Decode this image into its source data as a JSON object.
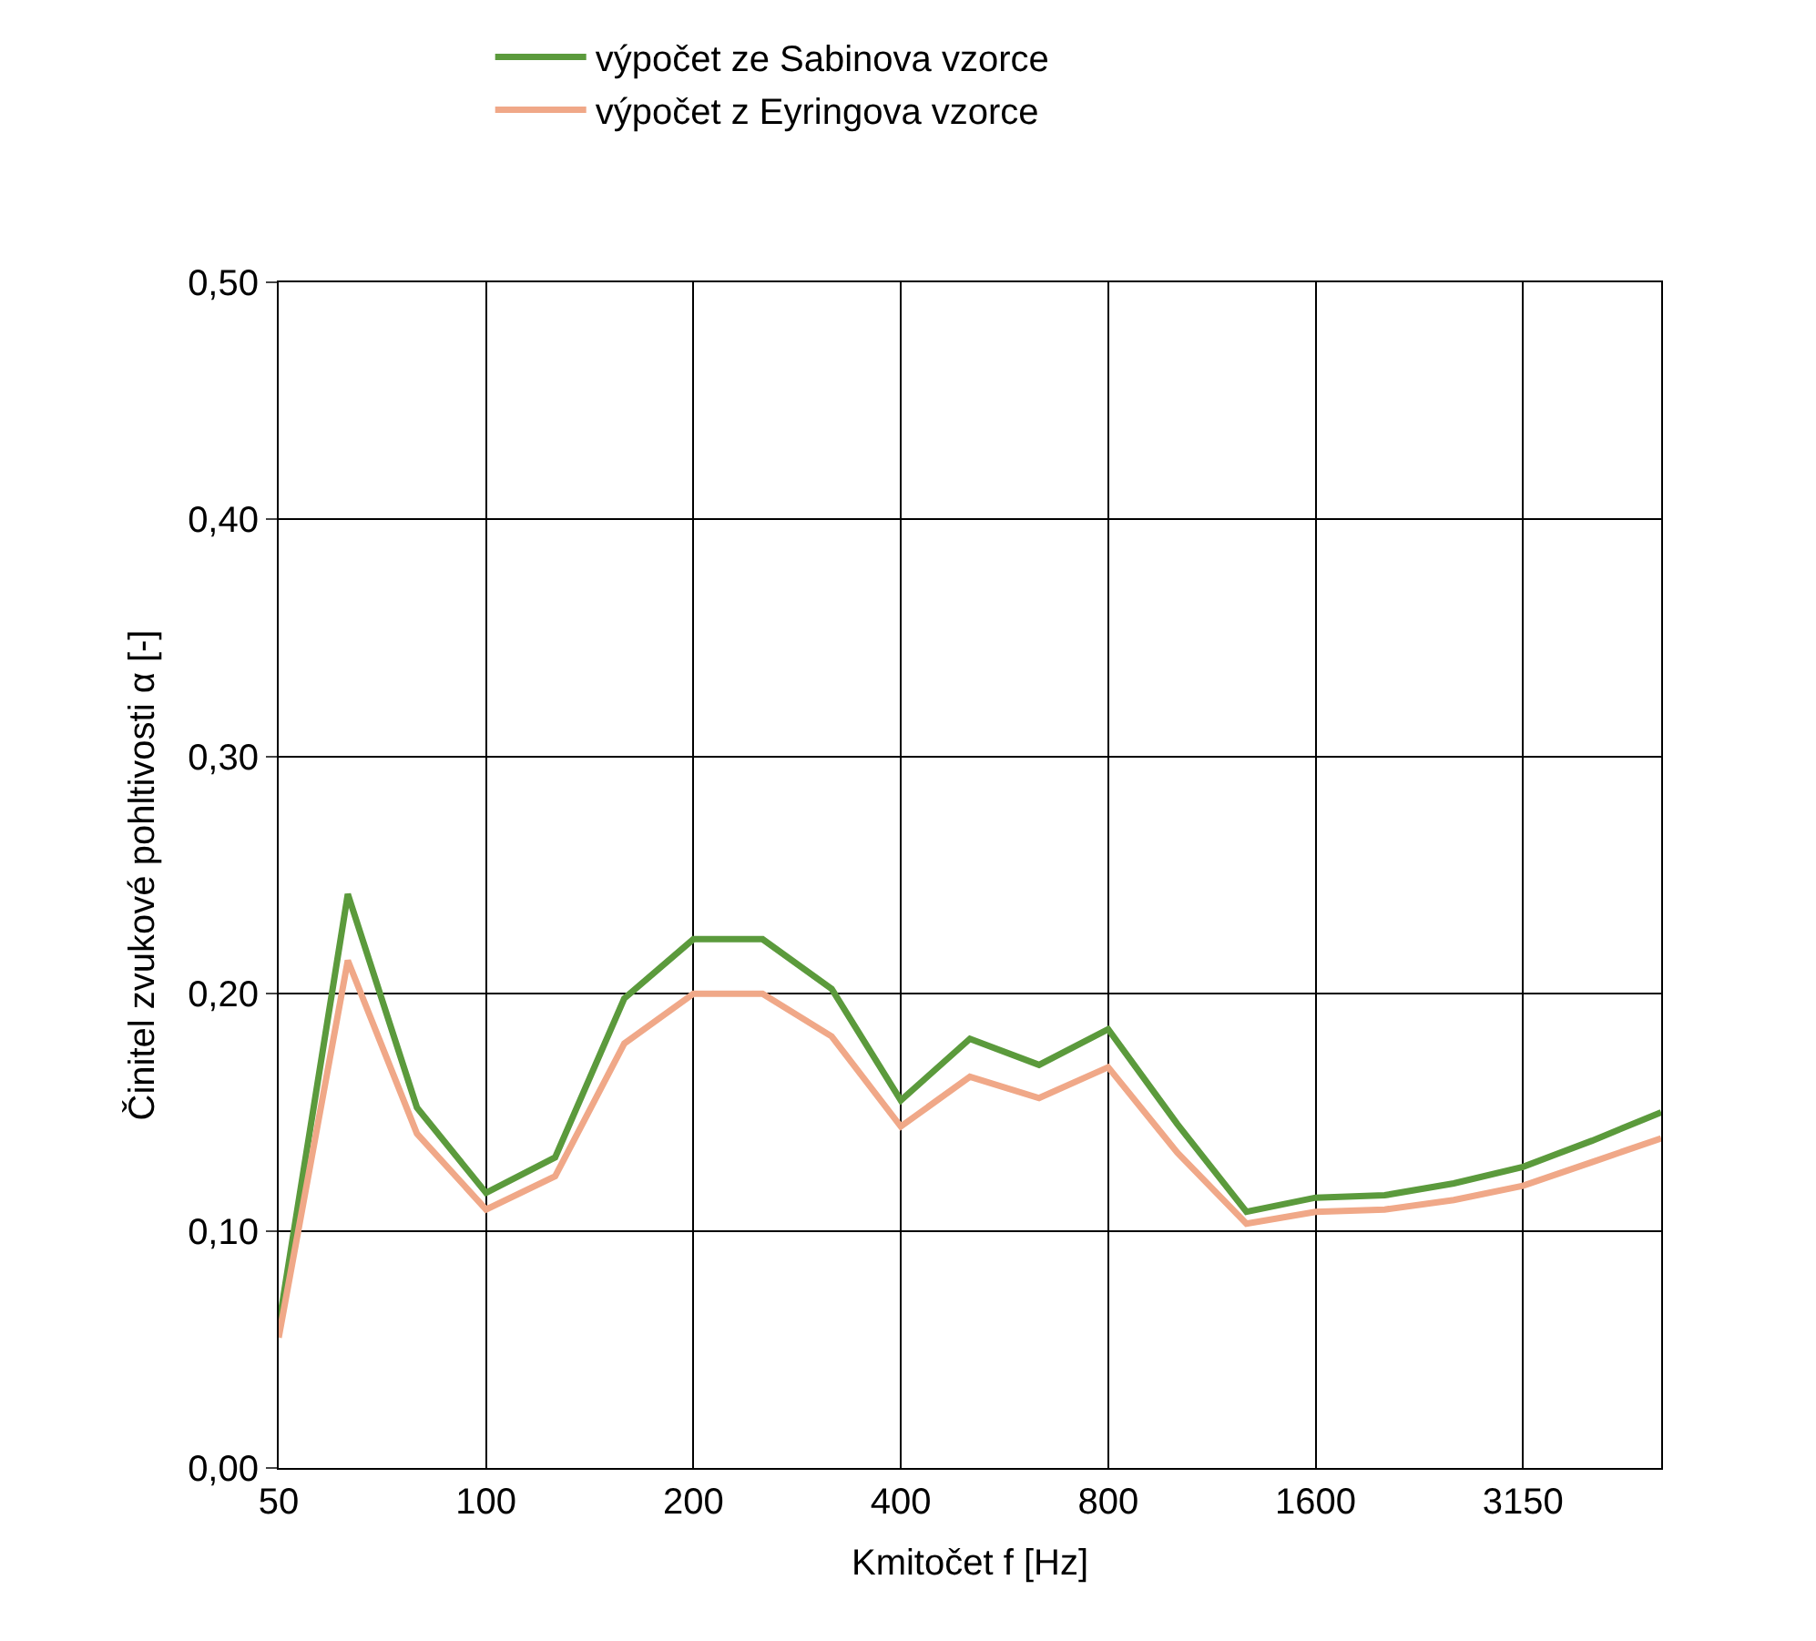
{
  "chart_data": {
    "type": "line",
    "xlabel": "Kmitočet f [Hz]",
    "ylabel": "Činitel zvukové pohltivosti α [-]",
    "categories": [
      "50",
      null,
      null,
      "100",
      null,
      null,
      "200",
      null,
      null,
      "400",
      null,
      null,
      "800",
      null,
      null,
      "1600",
      null,
      null,
      "3150",
      null,
      null
    ],
    "series": [
      {
        "name": "výpočet ze Sabinova vzorce",
        "color": "#5b9a3c",
        "values": [
          0.06,
          0.242,
          0.152,
          0.116,
          0.131,
          0.198,
          0.223,
          0.223,
          0.202,
          0.155,
          0.181,
          0.17,
          0.185,
          0.145,
          0.108,
          0.114,
          0.115,
          0.12,
          0.127,
          0.138,
          0.15
        ]
      },
      {
        "name": "výpočet z Eyringova vzorce",
        "color": "#f0a888",
        "values": [
          0.055,
          0.214,
          0.141,
          0.109,
          0.123,
          0.179,
          0.2,
          0.2,
          0.182,
          0.144,
          0.165,
          0.156,
          0.169,
          0.133,
          0.103,
          0.108,
          0.109,
          0.113,
          0.119,
          0.129,
          0.139
        ]
      }
    ],
    "ylim": [
      0,
      0.5
    ],
    "yticks": [
      {
        "value": 0,
        "label": "0,00"
      },
      {
        "value": 0.1,
        "label": "0,10"
      },
      {
        "value": 0.2,
        "label": "0,20"
      },
      {
        "value": 0.3,
        "label": "0,30"
      },
      {
        "value": 0.4,
        "label": "0,40"
      },
      {
        "value": 0.5,
        "label": "0,50"
      }
    ],
    "grid": true,
    "legend": "top",
    "marker": "none",
    "line_style": "solid"
  }
}
